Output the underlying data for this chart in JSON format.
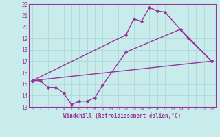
{
  "title": "",
  "xlabel": "Windchill (Refroidissement éolien,°C)",
  "bg_color": "#c8ecec",
  "grid_color": "#b0d8d8",
  "line_color": "#993399",
  "xlim": [
    -0.5,
    23.5
  ],
  "ylim": [
    13,
    22
  ],
  "xtick_vals": [
    0,
    1,
    2,
    3,
    4,
    5,
    6,
    7,
    8,
    9,
    10,
    11,
    12,
    13,
    14,
    15,
    16,
    17,
    18,
    19,
    20,
    21,
    22,
    23
  ],
  "ytick_vals": [
    13,
    14,
    15,
    16,
    17,
    18,
    19,
    20,
    21,
    22
  ],
  "line1_x": [
    0,
    1,
    2,
    3,
    4,
    5,
    6,
    7,
    8,
    9,
    12,
    19,
    23
  ],
  "line1_y": [
    15.3,
    15.3,
    14.7,
    14.7,
    14.2,
    13.2,
    13.5,
    13.5,
    13.8,
    14.9,
    17.8,
    19.8,
    17.0
  ],
  "line2_x": [
    0,
    12,
    13,
    14,
    15,
    16,
    17,
    20,
    23
  ],
  "line2_y": [
    15.3,
    19.3,
    20.7,
    20.5,
    21.7,
    21.4,
    21.3,
    19.0,
    17.0
  ],
  "line3_x": [
    0,
    23
  ],
  "line3_y": [
    15.3,
    17.0
  ],
  "marker_size": 2.5,
  "line_width": 1.0
}
